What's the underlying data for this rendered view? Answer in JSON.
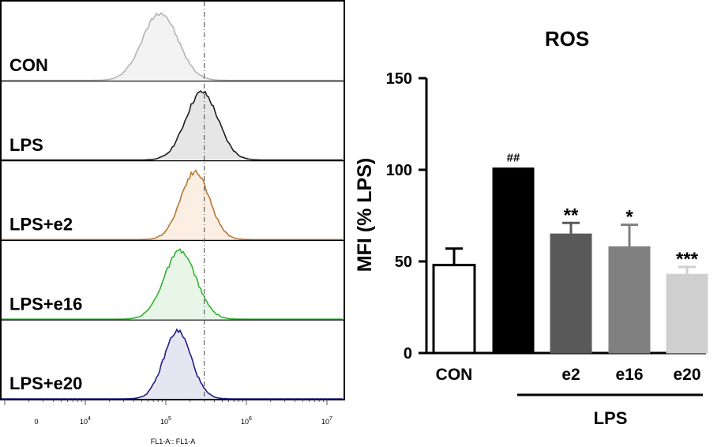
{
  "chart_data": [
    {
      "type": "histogram-overlay",
      "xaxis_label": "FL1-A:: FL1-A",
      "xaxis_ticks": [
        {
          "label": "0",
          "value": 0
        },
        {
          "base": "10",
          "exp": "4",
          "value": 10000
        },
        {
          "base": "10",
          "exp": "5",
          "value": 100000
        },
        {
          "base": "10",
          "exp": "6",
          "value": 1000000
        },
        {
          "base": "10",
          "exp": "7",
          "value": 10000000
        }
      ],
      "reference_line_value": 300000,
      "panels": [
        {
          "label": "CON",
          "peak_value": 85000,
          "spread": 0.22,
          "color": "#b4b4b4",
          "fill": "#f3f3f3"
        },
        {
          "label": "LPS",
          "peak_value": 280000,
          "spread": 0.2,
          "color": "#1e1e1e",
          "fill": "#e6e6e6"
        },
        {
          "label": "LPS+e2",
          "peak_value": 230000,
          "spread": 0.18,
          "color": "#b87838",
          "fill": "#fbeee3"
        },
        {
          "label": "LPS+e16",
          "peak_value": 150000,
          "spread": 0.2,
          "color": "#33b233",
          "fill": "#e8f6e8"
        },
        {
          "label": "LPS+e20",
          "peak_value": 140000,
          "spread": 0.17,
          "color": "#202080",
          "fill": "#e6e6f3"
        }
      ]
    },
    {
      "type": "bar",
      "title": "ROS",
      "ylabel": "MFI (% LPS)",
      "ylim": [
        0,
        150
      ],
      "yticks": [
        0,
        50,
        100,
        150
      ],
      "categories": [
        "CON",
        "",
        "e2",
        "e16",
        "e20"
      ],
      "values": [
        48,
        101,
        65,
        58,
        43
      ],
      "errors": [
        9,
        0,
        6,
        12,
        4
      ],
      "significance": [
        "",
        "##",
        "**",
        "*",
        "***"
      ],
      "bar_fill": [
        "#ffffff",
        "#000000",
        "#595959",
        "#808080",
        "#cfcfcf"
      ],
      "bar_stroke": [
        "#000000",
        "#000000",
        "#595959",
        "#808080",
        "#cfcfcf"
      ],
      "group_label": "LPS"
    }
  ]
}
